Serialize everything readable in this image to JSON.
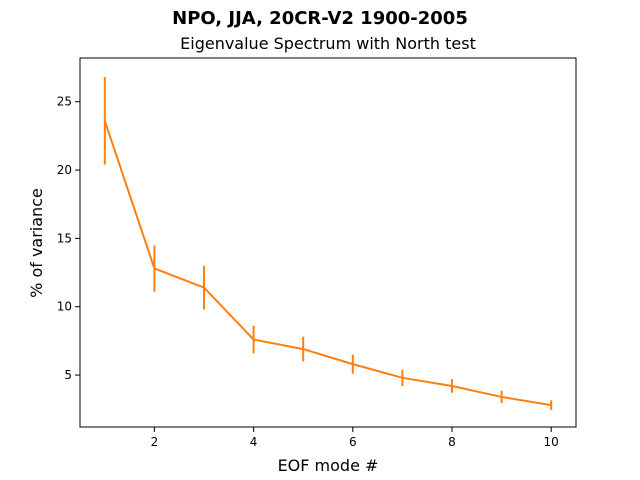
{
  "chart_data": {
    "type": "line",
    "title": "NPO, JJA, 20CR-V2 1900-2005",
    "subtitle": "Eigenvalue Spectrum with North test",
    "xlabel": "EOF mode #",
    "ylabel": "% of variance",
    "xlim": [
      0.5,
      10.5
    ],
    "ylim": [
      1.2,
      28.2
    ],
    "xticks": [
      2,
      4,
      6,
      8,
      10
    ],
    "yticks": [
      5,
      10,
      15,
      20,
      25
    ],
    "grid": false,
    "line_color": "#ff7f0e",
    "series": [
      {
        "x": [
          1,
          2,
          3,
          4,
          5,
          6,
          7,
          8,
          9,
          10
        ],
        "values": [
          23.6,
          12.8,
          11.4,
          7.6,
          6.9,
          5.8,
          4.8,
          4.2,
          3.4,
          2.8
        ],
        "error": [
          3.2,
          1.7,
          1.6,
          1.0,
          0.9,
          0.7,
          0.6,
          0.5,
          0.45,
          0.35
        ]
      }
    ]
  }
}
